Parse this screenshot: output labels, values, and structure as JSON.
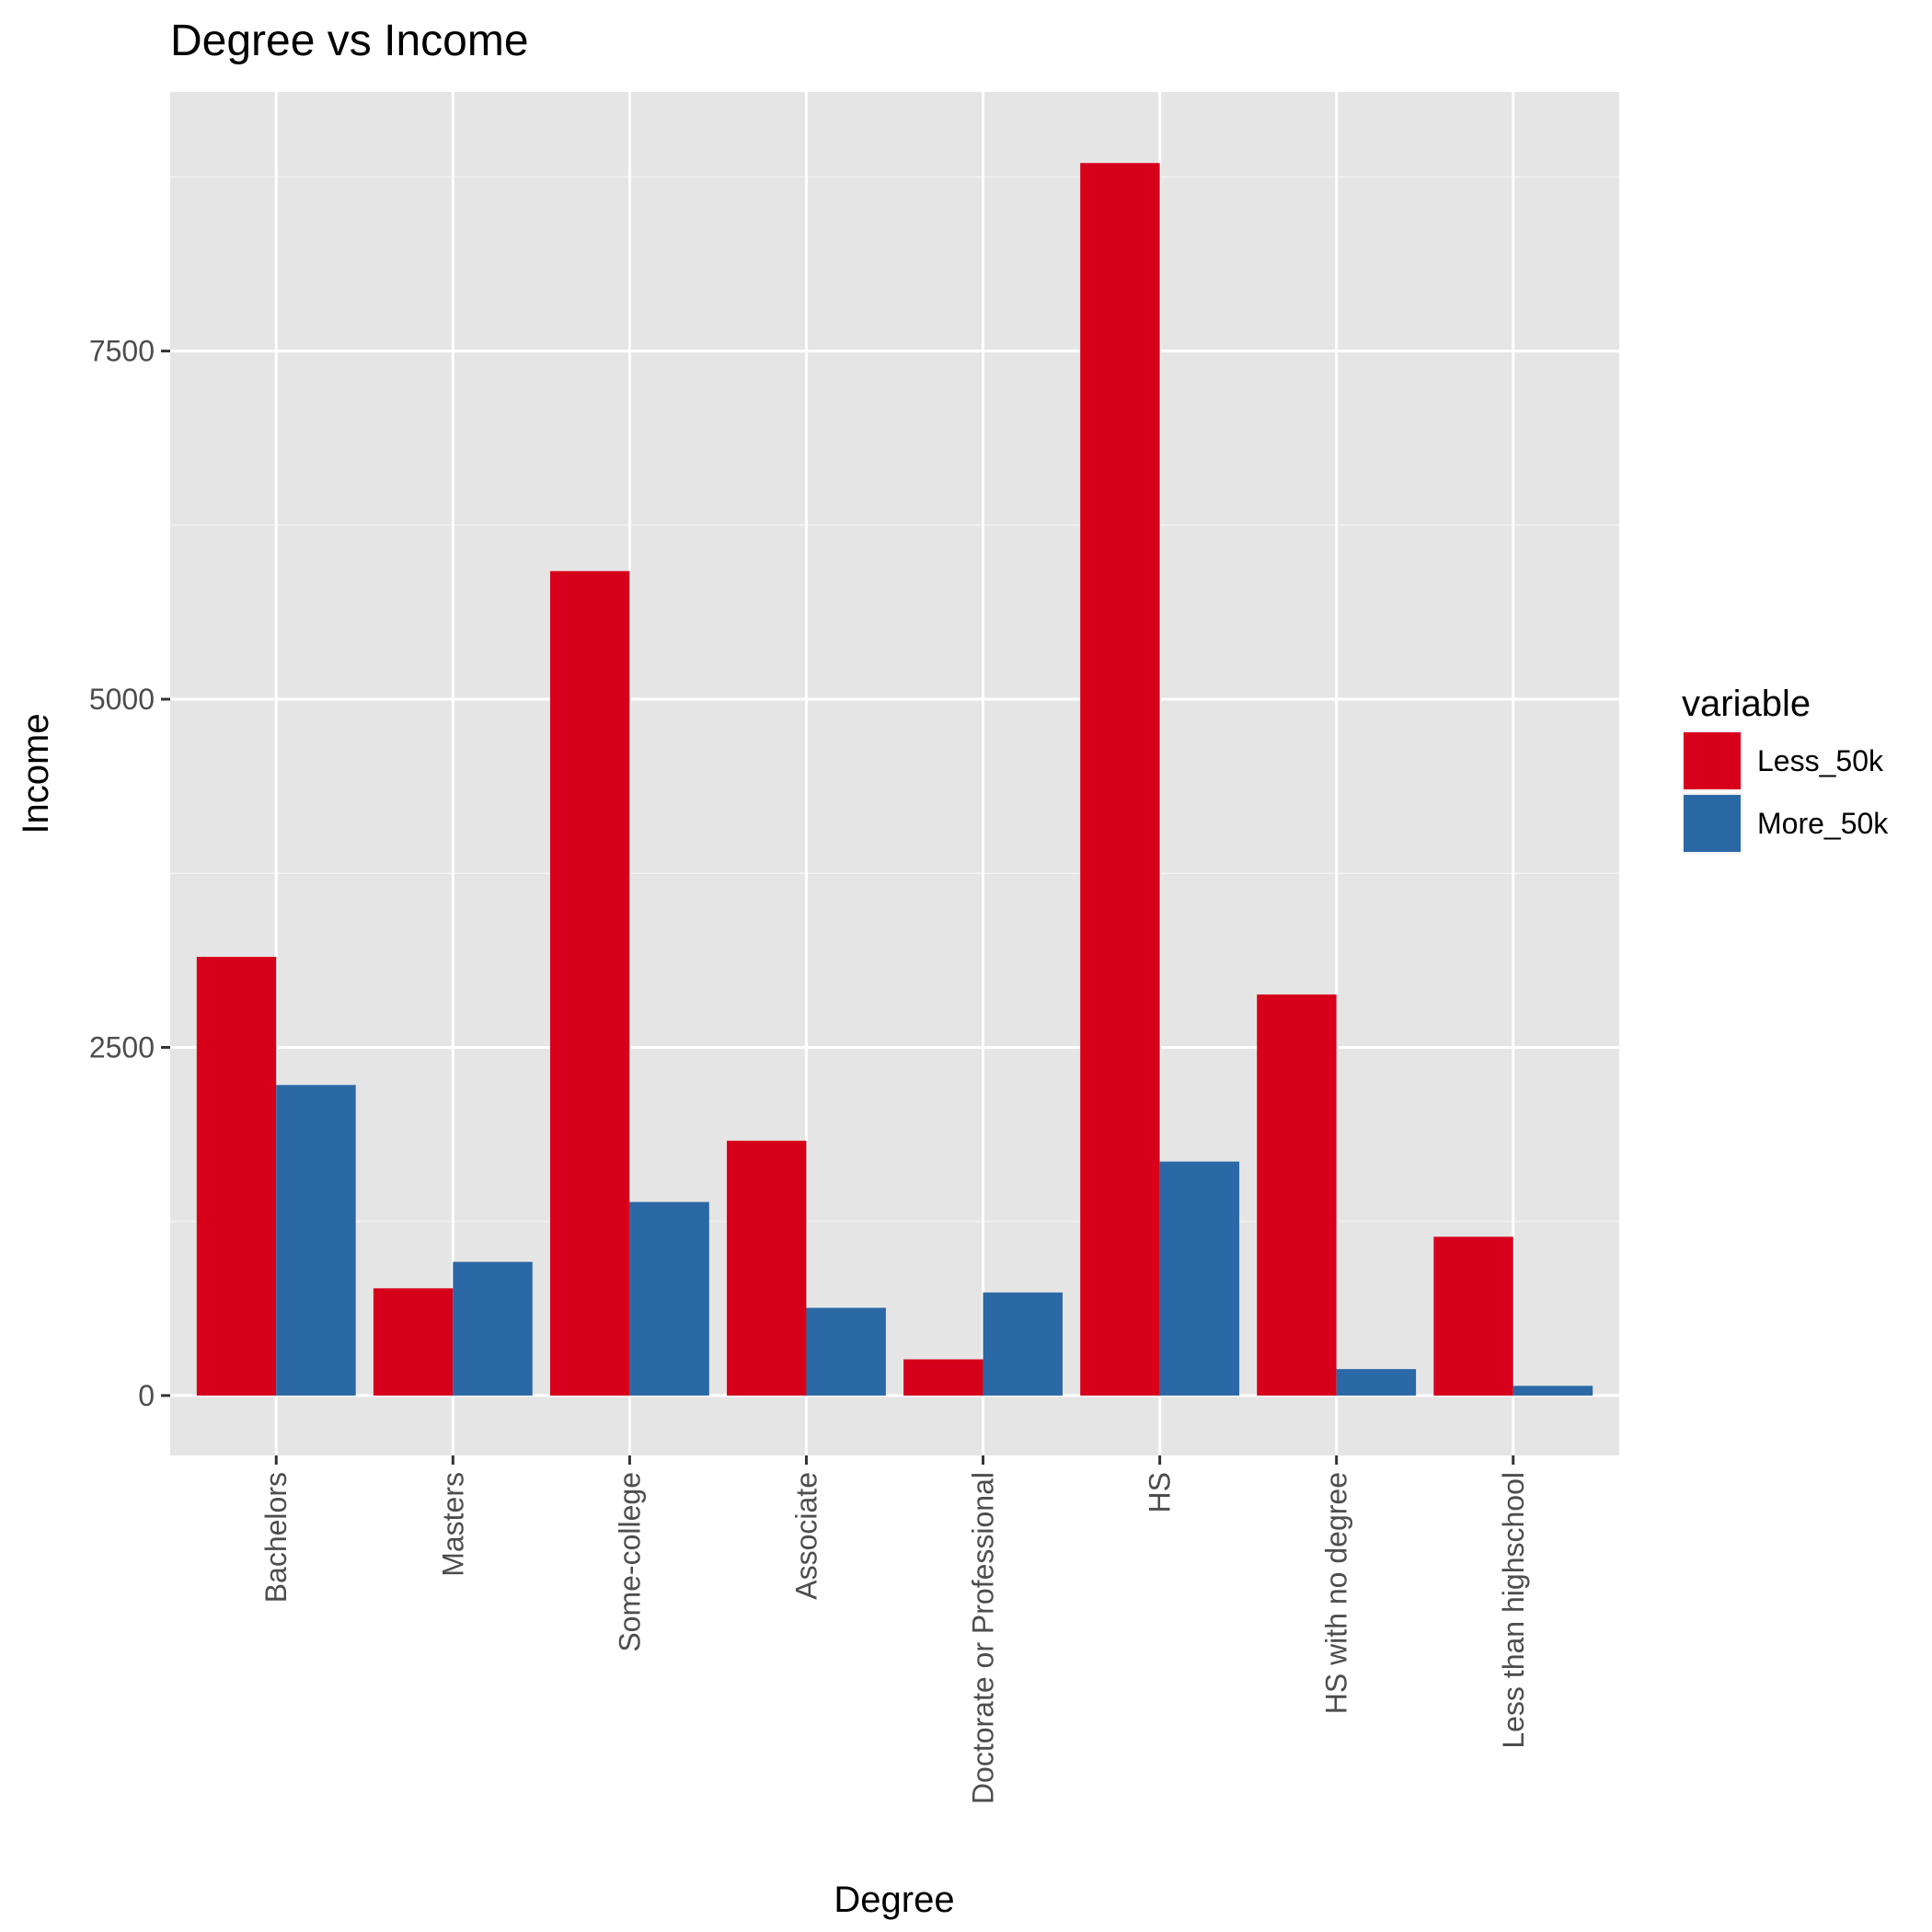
{
  "chart_data": {
    "type": "bar",
    "title": "Degree vs Income",
    "xlabel": "Degree",
    "ylabel": "Income",
    "categories": [
      "Bachelors",
      "Masters",
      "Some-college",
      "Associate",
      "Doctorate or Professional",
      "HS",
      "HS with no degree",
      "Less than highschool"
    ],
    "series": [
      {
        "name": "Less_50k",
        "color": "#d7001a",
        "values": [
          3150,
          770,
          5920,
          1830,
          260,
          8850,
          2880,
          1140
        ]
      },
      {
        "name": "More_50k",
        "color": "#2b68a6",
        "values": [
          2230,
          960,
          1390,
          630,
          740,
          1680,
          190,
          70
        ]
      }
    ],
    "yticks": [
      0,
      2500,
      5000,
      7500
    ],
    "ylim": [
      -430,
      9360
    ],
    "grid": true,
    "legend": {
      "title": "variable",
      "position": "right"
    }
  }
}
